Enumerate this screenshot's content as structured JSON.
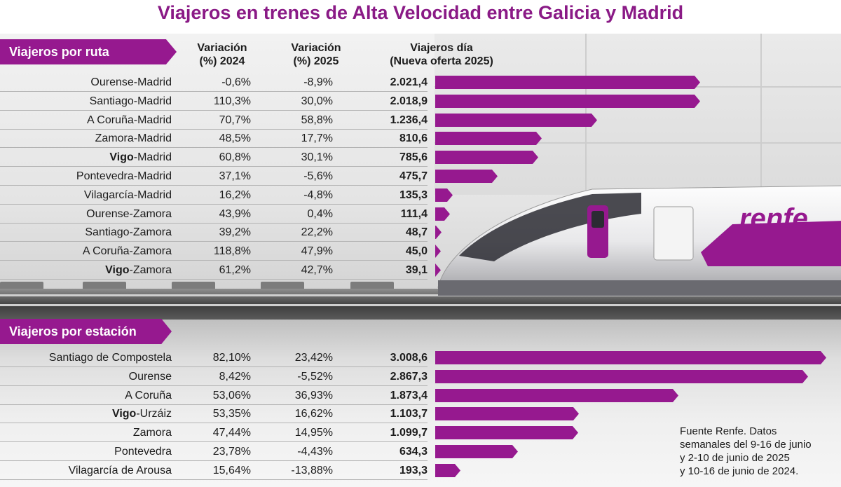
{
  "title": "Viajeros en trenes de Alta Velocidad entre Galicia y Madrid",
  "colors": {
    "accent": "#96198f",
    "title": "#8a1a86"
  },
  "logo_text": "renfe",
  "source_lines": [
    "Fuente Renfe. Datos",
    "semanales del 9-16 de junio",
    "y 2-10 de junio de 2025",
    "y 10-16 de junio de 2024."
  ],
  "chart_data": [
    {
      "type": "bar",
      "section": "Viajeros por ruta",
      "headers": {
        "v2024": [
          "Variación",
          "(%) 2024"
        ],
        "v2025": [
          "Variación",
          "(%) 2025"
        ],
        "viajeros": [
          "Viajeros día",
          "(Nueva oferta 2025)"
        ]
      },
      "rows": [
        {
          "bold": "",
          "rest": "Ourense-Madrid",
          "v2024": "-0,6%",
          "v2025": "-8,9%",
          "viajeros": "2.021,4",
          "value": 2021.4
        },
        {
          "bold": "",
          "rest": "Santiago-Madrid",
          "v2024": "110,3%",
          "v2025": "30,0%",
          "viajeros": "2.018,9",
          "value": 2018.9
        },
        {
          "bold": "",
          "rest": "A Coruña-Madrid",
          "v2024": "70,7%",
          "v2025": "58,8%",
          "viajeros": "1.236,4",
          "value": 1236.4
        },
        {
          "bold": "",
          "rest": "Zamora-Madrid",
          "v2024": "48,5%",
          "v2025": "17,7%",
          "viajeros": "810,6",
          "value": 810.6
        },
        {
          "bold": "Vigo",
          "rest": "-Madrid",
          "v2024": "60,8%",
          "v2025": "30,1%",
          "viajeros": "785,6",
          "value": 785.6
        },
        {
          "bold": "",
          "rest": "Pontevedra-Madrid",
          "v2024": "37,1%",
          "v2025": "-5,6%",
          "viajeros": "475,7",
          "value": 475.7
        },
        {
          "bold": "",
          "rest": "Vilagarcía-Madrid",
          "v2024": "16,2%",
          "v2025": "-4,8%",
          "viajeros": "135,3",
          "value": 135.3
        },
        {
          "bold": "",
          "rest": "Ourense-Zamora",
          "v2024": "43,9%",
          "v2025": "0,4%",
          "viajeros": "111,4",
          "value": 111.4
        },
        {
          "bold": "",
          "rest": "Santiago-Zamora",
          "v2024": "39,2%",
          "v2025": "22,2%",
          "viajeros": "48,7",
          "value": 48.7
        },
        {
          "bold": "",
          "rest": "A Coruña-Zamora",
          "v2024": "118,8%",
          "v2025": "47,9%",
          "viajeros": "45,0",
          "value": 45.0
        },
        {
          "bold": "Vigo",
          "rest": "-Zamora",
          "v2024": "61,2%",
          "v2025": "42,7%",
          "viajeros": "39,1",
          "value": 39.1
        }
      ]
    },
    {
      "type": "bar",
      "section": "Viajeros por estación",
      "rows": [
        {
          "bold": "",
          "rest": "Santiago de Compostela",
          "v2024": "82,10%",
          "v2025": "23,42%",
          "viajeros": "3.008,6",
          "value": 3008.6
        },
        {
          "bold": "",
          "rest": "Ourense",
          "v2024": "8,42%",
          "v2025": "-5,52%",
          "viajeros": "2.867,3",
          "value": 2867.3
        },
        {
          "bold": "",
          "rest": "A Coruña",
          "v2024": "53,06%",
          "v2025": "36,93%",
          "viajeros": "1.873,4",
          "value": 1873.4
        },
        {
          "bold": "Vigo",
          "rest": "-Urzáiz",
          "v2024": "53,35%",
          "v2025": "16,62%",
          "viajeros": "1.103,7",
          "value": 1103.7
        },
        {
          "bold": "",
          "rest": "Zamora",
          "v2024": "47,44%",
          "v2025": "14,95%",
          "viajeros": "1.099,7",
          "value": 1099.7
        },
        {
          "bold": "",
          "rest": "Pontevedra",
          "v2024": "23,78%",
          "v2025": "-4,43%",
          "viajeros": "634,3",
          "value": 634.3
        },
        {
          "bold": "",
          "rest": "Vilagarcía de Arousa",
          "v2024": "15,64%",
          "v2025": "-13,88%",
          "viajeros": "193,3",
          "value": 193.3
        }
      ]
    }
  ]
}
